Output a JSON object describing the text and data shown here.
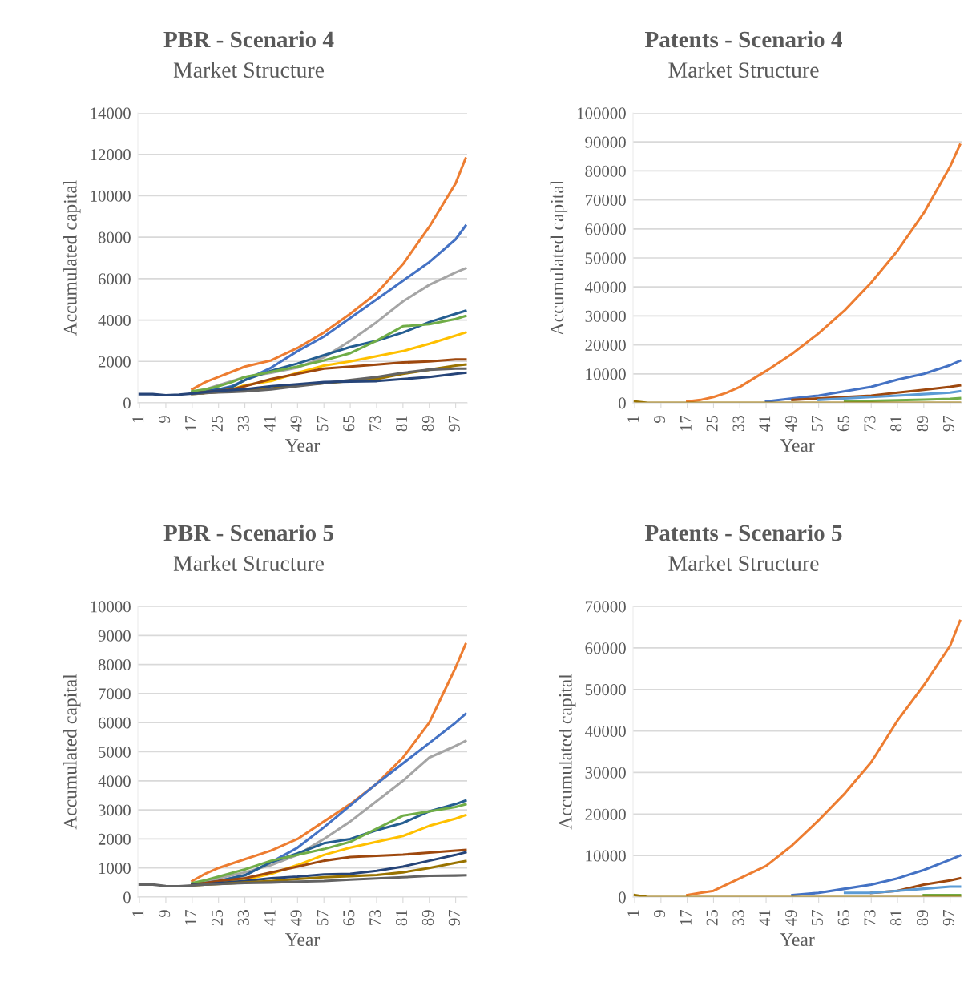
{
  "chart_data": [
    {
      "type": "line",
      "title": "PBR - Scenario 4",
      "subtitle": "Market Structure",
      "xlabel": "Year",
      "ylabel": "Accumulated capital",
      "grid": "y",
      "legend": false,
      "marker": "none",
      "line_style": "solid",
      "x": [
        1,
        5,
        9,
        13,
        17,
        21,
        25,
        29,
        33,
        41,
        49,
        57,
        65,
        73,
        81,
        89,
        97,
        100
      ],
      "xlim": [
        0.5,
        100.5
      ],
      "xticks": [
        1,
        9,
        17,
        25,
        33,
        41,
        49,
        57,
        65,
        73,
        81,
        89,
        97
      ],
      "ylim": [
        0,
        14000
      ],
      "yticks": [
        0,
        2000,
        4000,
        6000,
        8000,
        10000,
        12000,
        14000
      ],
      "series": [
        {
          "color": "#ed7d31",
          "values": [
            null,
            null,
            null,
            null,
            650,
            1000,
            1250,
            1500,
            1750,
            2050,
            2650,
            3400,
            4300,
            5300,
            6700,
            8500,
            10600,
            11800
          ]
        },
        {
          "color": "#4472c4",
          "values": [
            null,
            null,
            null,
            null,
            480,
            560,
            650,
            800,
            1100,
            1700,
            2500,
            3200,
            4100,
            5000,
            5900,
            6800,
            7900,
            8550
          ]
        },
        {
          "color": "#a5a5a5",
          "values": [
            null,
            null,
            null,
            null,
            520,
            650,
            850,
            1050,
            1250,
            1450,
            1700,
            2200,
            3000,
            3900,
            4900,
            5700,
            6300,
            6500
          ]
        },
        {
          "color": "#255e91",
          "values": [
            null,
            null,
            null,
            null,
            500,
            580,
            650,
            750,
            1100,
            1550,
            1900,
            2300,
            2700,
            3000,
            3400,
            3900,
            4300,
            4450
          ]
        },
        {
          "color": "#70ad47",
          "values": [
            null,
            null,
            null,
            null,
            560,
            650,
            800,
            1000,
            1250,
            1500,
            1750,
            2050,
            2400,
            3000,
            3700,
            3800,
            4050,
            4200
          ]
        },
        {
          "color": "#ffc000",
          "values": [
            null,
            null,
            null,
            null,
            null,
            null,
            550,
            650,
            850,
            1050,
            1450,
            1800,
            2000,
            2250,
            2500,
            2850,
            3250,
            3400
          ]
        },
        {
          "color": "#9e480e",
          "values": [
            null,
            null,
            null,
            null,
            450,
            520,
            580,
            650,
            800,
            1150,
            1400,
            1650,
            1750,
            1850,
            1950,
            2000,
            2100,
            2100
          ]
        },
        {
          "color": "#997300",
          "values": [
            null,
            null,
            null,
            null,
            430,
            470,
            520,
            560,
            600,
            700,
            850,
            950,
            1050,
            1150,
            1400,
            1600,
            1800,
            1850
          ]
        },
        {
          "color": "#636363",
          "values": [
            null,
            null,
            null,
            null,
            430,
            470,
            500,
            520,
            550,
            650,
            800,
            950,
            1100,
            1250,
            1450,
            1600,
            1650,
            1650
          ]
        },
        {
          "color": "#264478",
          "values": [
            420,
            420,
            370,
            400,
            450,
            520,
            580,
            620,
            660,
            800,
            900,
            1000,
            1030,
            1050,
            1150,
            1250,
            1400,
            1450
          ]
        }
      ]
    },
    {
      "type": "line",
      "title": "Patents - Scenario 4",
      "subtitle": "Market Structure",
      "xlabel": "Year",
      "ylabel": "Accumulated capital",
      "grid": "y",
      "legend": false,
      "marker": "none",
      "line_style": "solid",
      "x": [
        1,
        5,
        9,
        13,
        17,
        21,
        25,
        29,
        33,
        41,
        49,
        57,
        65,
        73,
        81,
        89,
        97,
        100
      ],
      "xlim": [
        0.5,
        100.5
      ],
      "xticks": [
        1,
        9,
        17,
        25,
        33,
        41,
        49,
        57,
        65,
        73,
        81,
        89,
        97
      ],
      "ylim": [
        0,
        100000
      ],
      "yticks": [
        0,
        10000,
        20000,
        30000,
        40000,
        50000,
        60000,
        70000,
        80000,
        90000,
        100000
      ],
      "series": [
        {
          "color": "#ed7d31",
          "values": [
            null,
            null,
            null,
            null,
            500,
            1000,
            2000,
            3500,
            5500,
            11000,
            17000,
            24000,
            32000,
            41500,
            52500,
            65500,
            81500,
            89000
          ]
        },
        {
          "color": "#4472c4",
          "values": [
            null,
            null,
            null,
            null,
            null,
            null,
            null,
            null,
            null,
            500,
            1500,
            2500,
            4000,
            5500,
            8000,
            10000,
            13000,
            14500
          ]
        },
        {
          "color": "#9e480e",
          "values": [
            null,
            null,
            null,
            null,
            null,
            null,
            null,
            null,
            null,
            null,
            1000,
            1500,
            2000,
            2500,
            3500,
            4500,
            5500,
            6000
          ]
        },
        {
          "color": "#5b9bd5",
          "values": [
            null,
            null,
            null,
            null,
            null,
            null,
            null,
            null,
            null,
            null,
            null,
            1000,
            1500,
            2000,
            2500,
            3000,
            3500,
            4000
          ]
        },
        {
          "color": "#70ad47",
          "values": [
            null,
            null,
            null,
            null,
            null,
            null,
            null,
            null,
            null,
            null,
            null,
            null,
            500,
            700,
            900,
            1100,
            1400,
            1600
          ]
        },
        {
          "color": "#997300",
          "values": [
            500,
            0,
            0,
            0,
            0,
            0,
            0,
            0,
            0,
            0,
            0,
            0,
            0,
            0,
            0,
            0,
            0,
            0
          ]
        }
      ]
    },
    {
      "type": "line",
      "title": "PBR - Scenario 5",
      "subtitle": "Market Structure",
      "xlabel": "Year",
      "ylabel": "Accumulated capital",
      "grid": "y",
      "legend": false,
      "marker": "none",
      "line_style": "solid",
      "x": [
        1,
        5,
        9,
        13,
        17,
        21,
        25,
        33,
        41,
        49,
        57,
        65,
        73,
        81,
        89,
        97,
        100
      ],
      "xlim": [
        0.5,
        100.5
      ],
      "xticks": [
        1,
        9,
        17,
        25,
        33,
        41,
        49,
        57,
        65,
        73,
        81,
        89,
        97
      ],
      "ylim": [
        0,
        10000
      ],
      "yticks": [
        0,
        1000,
        2000,
        3000,
        4000,
        5000,
        6000,
        7000,
        8000,
        9000,
        10000
      ],
      "series": [
        {
          "color": "#ed7d31",
          "values": [
            null,
            null,
            null,
            null,
            550,
            800,
            1000,
            1300,
            1600,
            2000,
            2600,
            3200,
            3900,
            4800,
            6000,
            7900,
            8700
          ]
        },
        {
          "color": "#4472c4",
          "values": [
            null,
            null,
            null,
            null,
            430,
            480,
            550,
            750,
            1200,
            1700,
            2400,
            3150,
            3900,
            4600,
            5300,
            6000,
            6300
          ]
        },
        {
          "color": "#a5a5a5",
          "values": [
            null,
            null,
            null,
            null,
            450,
            550,
            650,
            850,
            1100,
            1450,
            2000,
            2600,
            3300,
            4000,
            4800,
            5200,
            5370
          ]
        },
        {
          "color": "#255e91",
          "values": [
            null,
            null,
            null,
            null,
            430,
            480,
            550,
            750,
            1200,
            1500,
            1850,
            2000,
            2300,
            2550,
            2950,
            3200,
            3320
          ]
        },
        {
          "color": "#70ad47",
          "values": [
            null,
            null,
            null,
            null,
            480,
            580,
            700,
            950,
            1250,
            1450,
            1650,
            1900,
            2350,
            2800,
            2950,
            3100,
            3190
          ]
        },
        {
          "color": "#ffc000",
          "values": [
            null,
            null,
            null,
            null,
            null,
            null,
            500,
            600,
            800,
            1100,
            1450,
            1700,
            1900,
            2100,
            2450,
            2700,
            2820
          ]
        },
        {
          "color": "#9e480e",
          "values": [
            null,
            null,
            null,
            null,
            430,
            480,
            550,
            650,
            850,
            1050,
            1250,
            1380,
            1420,
            1460,
            1530,
            1600,
            1620
          ]
        },
        {
          "color": "#264478",
          "values": [
            null,
            null,
            null,
            null,
            420,
            450,
            480,
            550,
            650,
            700,
            780,
            800,
            900,
            1050,
            1250,
            1450,
            1540
          ]
        },
        {
          "color": "#997300",
          "values": [
            null,
            null,
            null,
            null,
            400,
            430,
            450,
            500,
            550,
            620,
            680,
            720,
            760,
            850,
            1000,
            1180,
            1240
          ]
        },
        {
          "color": "#636363",
          "values": [
            430,
            430,
            380,
            370,
            400,
            430,
            450,
            480,
            500,
            530,
            550,
            600,
            640,
            680,
            730,
            740,
            750
          ]
        }
      ]
    },
    {
      "type": "line",
      "title": "Patents - Scenario 5",
      "subtitle": "Market Structure",
      "xlabel": "Year",
      "ylabel": "Accumulated capital",
      "grid": "y",
      "legend": false,
      "marker": "none",
      "line_style": "solid",
      "x": [
        1,
        5,
        9,
        13,
        17,
        21,
        25,
        29,
        33,
        41,
        49,
        57,
        65,
        73,
        81,
        89,
        97,
        100
      ],
      "xlim": [
        0.5,
        100.5
      ],
      "xticks": [
        1,
        9,
        17,
        25,
        33,
        41,
        49,
        57,
        65,
        73,
        81,
        89,
        97
      ],
      "ylim": [
        0,
        70000
      ],
      "yticks": [
        0,
        10000,
        20000,
        30000,
        40000,
        50000,
        60000,
        70000
      ],
      "series": [
        {
          "color": "#ed7d31",
          "values": [
            null,
            null,
            null,
            null,
            500,
            1000,
            1500,
            3000,
            4500,
            7500,
            12500,
            18500,
            25000,
            32500,
            42500,
            51000,
            60500,
            66500
          ]
        },
        {
          "color": "#4472c4",
          "values": [
            null,
            null,
            null,
            null,
            null,
            null,
            null,
            null,
            null,
            null,
            500,
            1000,
            2000,
            3000,
            4500,
            6500,
            9000,
            10000
          ]
        },
        {
          "color": "#9e480e",
          "values": [
            null,
            null,
            null,
            null,
            null,
            null,
            null,
            null,
            null,
            null,
            null,
            null,
            null,
            1000,
            1500,
            3000,
            4000,
            4500
          ]
        },
        {
          "color": "#5b9bd5",
          "values": [
            null,
            null,
            null,
            null,
            null,
            null,
            null,
            null,
            null,
            null,
            null,
            null,
            1000,
            1000,
            1500,
            2000,
            2500,
            2500
          ]
        },
        {
          "color": "#70ad47",
          "values": [
            null,
            null,
            null,
            null,
            null,
            null,
            null,
            null,
            null,
            null,
            null,
            null,
            null,
            null,
            null,
            500,
            500,
            500
          ]
        },
        {
          "color": "#997300",
          "values": [
            500,
            0,
            0,
            0,
            0,
            0,
            0,
            0,
            0,
            0,
            0,
            0,
            0,
            0,
            0,
            0,
            0,
            0
          ]
        }
      ]
    }
  ]
}
